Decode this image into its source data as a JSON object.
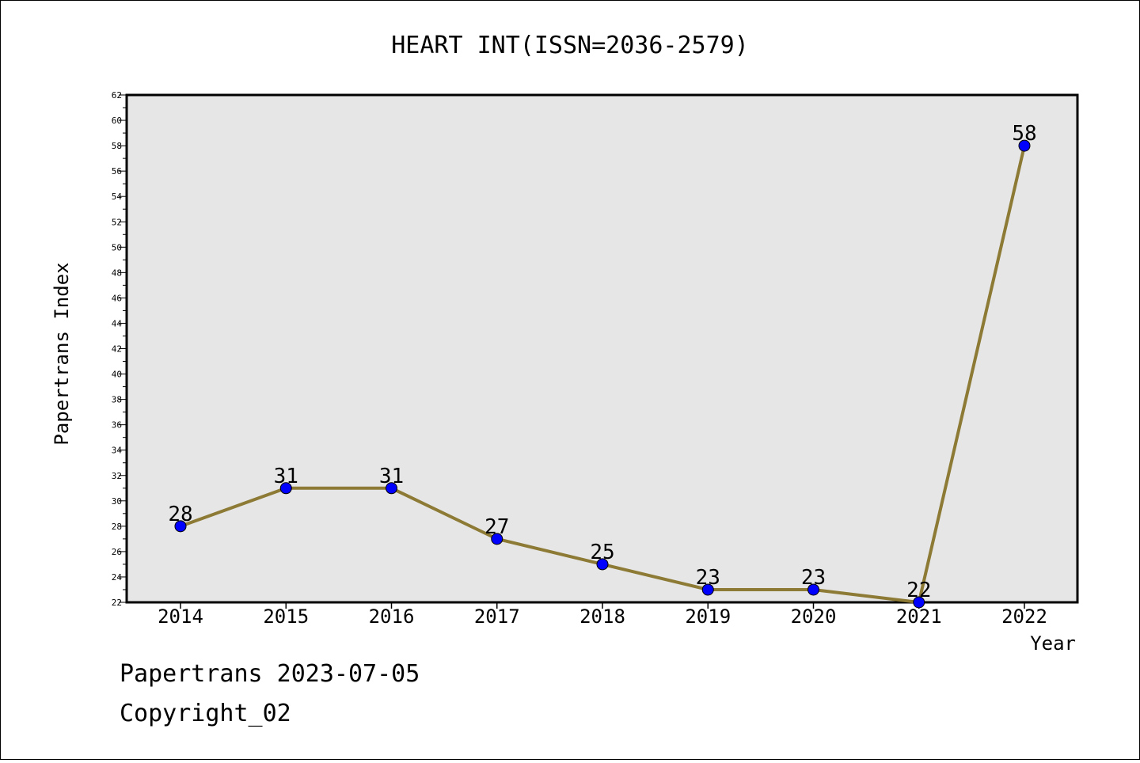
{
  "chart_data": {
    "type": "line",
    "title": "HEART INT(ISSN=2036-2579)",
    "xlabel": "Year",
    "ylabel": "Papertrans Index",
    "categories": [
      "2014",
      "2015",
      "2016",
      "2017",
      "2018",
      "2019",
      "2020",
      "2021",
      "2022"
    ],
    "series": [
      {
        "values": [
          28,
          31,
          31,
          27,
          25,
          23,
          23,
          22,
          58
        ]
      }
    ],
    "data_labels": [
      "28",
      "31",
      "31",
      "27",
      "25",
      "23",
      "23",
      "22",
      "58"
    ],
    "ylim": [
      22,
      62
    ],
    "yticks": [
      "22",
      "24",
      "26",
      "28",
      "30",
      "32",
      "34",
      "36",
      "38",
      "40",
      "42",
      "44",
      "46",
      "48",
      "50",
      "52",
      "54",
      "56",
      "58",
      "60",
      "62"
    ],
    "grid": false,
    "legend": "none",
    "colors": {
      "line": "#8c7a35",
      "marker": "#0000ff",
      "plot_background": "#e6e6e6"
    }
  },
  "footer": {
    "line1": "Papertrans 2023-07-05",
    "line2": "Copyright_02"
  }
}
